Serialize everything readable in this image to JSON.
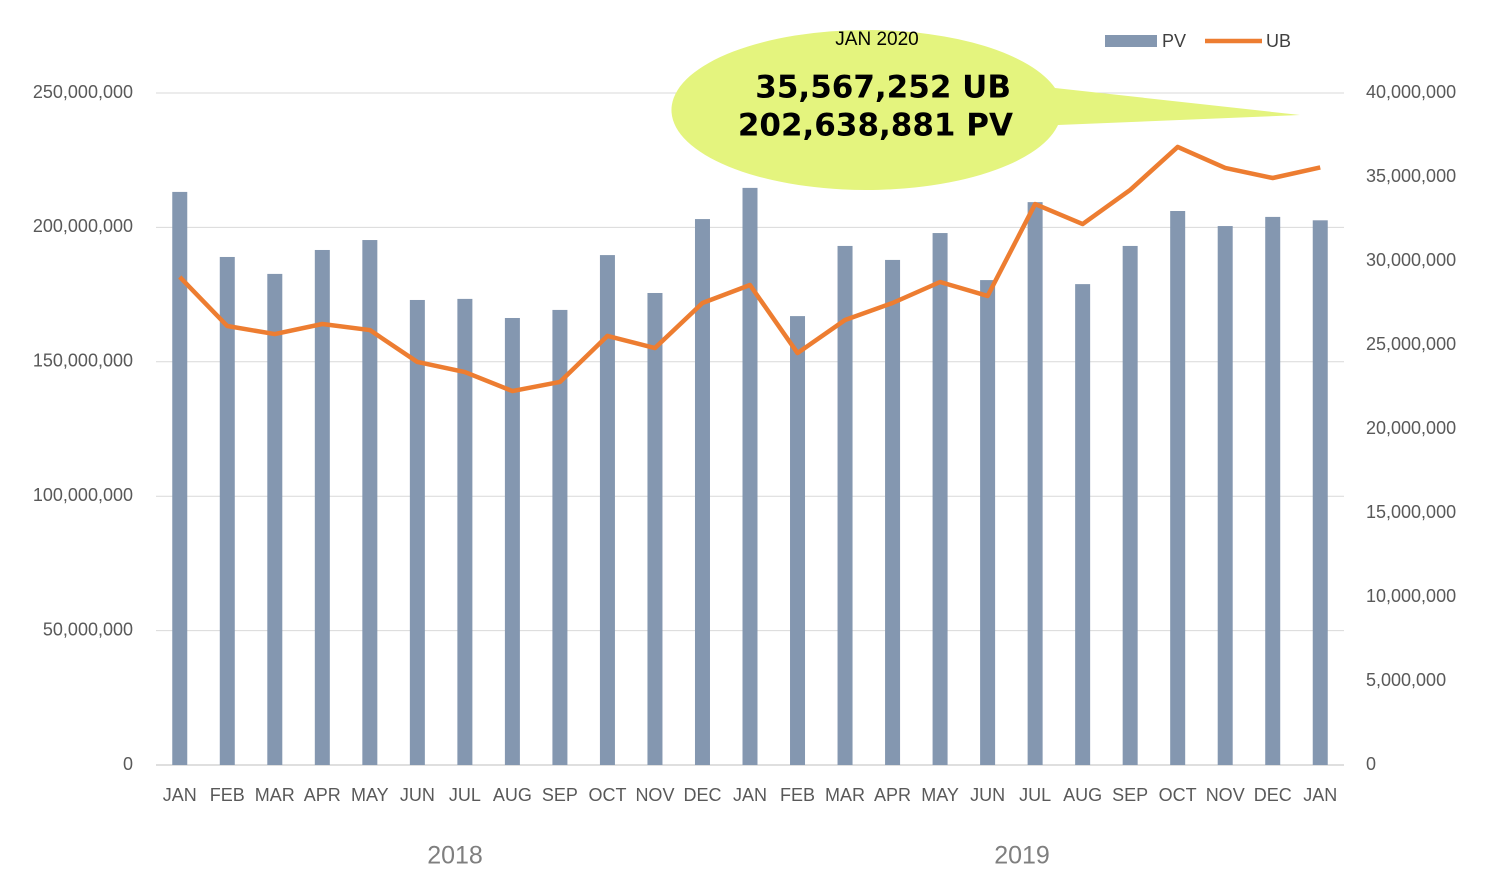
{
  "chart_data": {
    "type": "bar_line",
    "categories": [
      "JAN",
      "FEB",
      "MAR",
      "APR",
      "MAY",
      "JUN",
      "JUL",
      "AUG",
      "SEP",
      "OCT",
      "NOV",
      "DEC",
      "JAN",
      "FEB",
      "MAR",
      "APR",
      "MAY",
      "JUN",
      "JUL",
      "AUG",
      "SEP",
      "OCT",
      "NOV",
      "DEC",
      "JAN"
    ],
    "x_groups": [
      "2018",
      "2019"
    ],
    "series": [
      {
        "name": "PV",
        "type": "bar",
        "color": "#8497b0",
        "axis": "y",
        "values": [
          213200000,
          189000000,
          182700000,
          191600000,
          195300000,
          173000000,
          173400000,
          166300000,
          169300000,
          189700000,
          175600000,
          203100000,
          214700000,
          167000000,
          193100000,
          187900000,
          197900000,
          180400000,
          209400000,
          178900000,
          193100000,
          206100000,
          200500000,
          203900000,
          202638881
        ]
      },
      {
        "name": "UB",
        "type": "line",
        "color": "#ed7d31",
        "axis": "y2",
        "values": [
          29050000,
          26130000,
          25650000,
          26250000,
          25890000,
          23990000,
          23390000,
          22260000,
          22800000,
          25540000,
          24820000,
          27500000,
          28570000,
          24520000,
          26490000,
          27500000,
          28750000,
          27920000,
          33390000,
          32200000,
          34230000,
          36790000,
          35540000,
          34940000,
          35567252
        ]
      }
    ],
    "ylim": [
      0,
      250000000
    ],
    "yticks": [
      0,
      {
        "value": 50000000,
        "label": "50,000,000"
      },
      {
        "value": 100000000,
        "label": "100,000,000"
      },
      {
        "value": 150000000,
        "label": "150,000,000"
      },
      {
        "value": 200000000,
        "label": "200,000,000"
      },
      {
        "value": 250000000,
        "label": "250,000,000"
      }
    ],
    "y2lim": [
      0,
      40000000
    ],
    "y2ticks": [
      0,
      {
        "value": 5000000,
        "label": "5,000,000"
      },
      {
        "value": 10000000,
        "label": "10,000,000"
      },
      {
        "value": 15000000,
        "label": "15,000,000"
      },
      {
        "value": 20000000,
        "label": "20,000,000"
      },
      {
        "value": 25000000,
        "label": "25,000,000"
      },
      {
        "value": 30000000,
        "label": "30,000,000"
      },
      {
        "value": 35000000,
        "label": "35,000,000"
      },
      {
        "value": 40000000,
        "label": "40,000,000"
      }
    ],
    "grid": true,
    "legend": "top-right",
    "annotation": {
      "title": "JAN 2020",
      "lines": [
        "35,567,252 UB",
        "202,638,881 PV"
      ],
      "fill": "#e4f47e"
    }
  }
}
